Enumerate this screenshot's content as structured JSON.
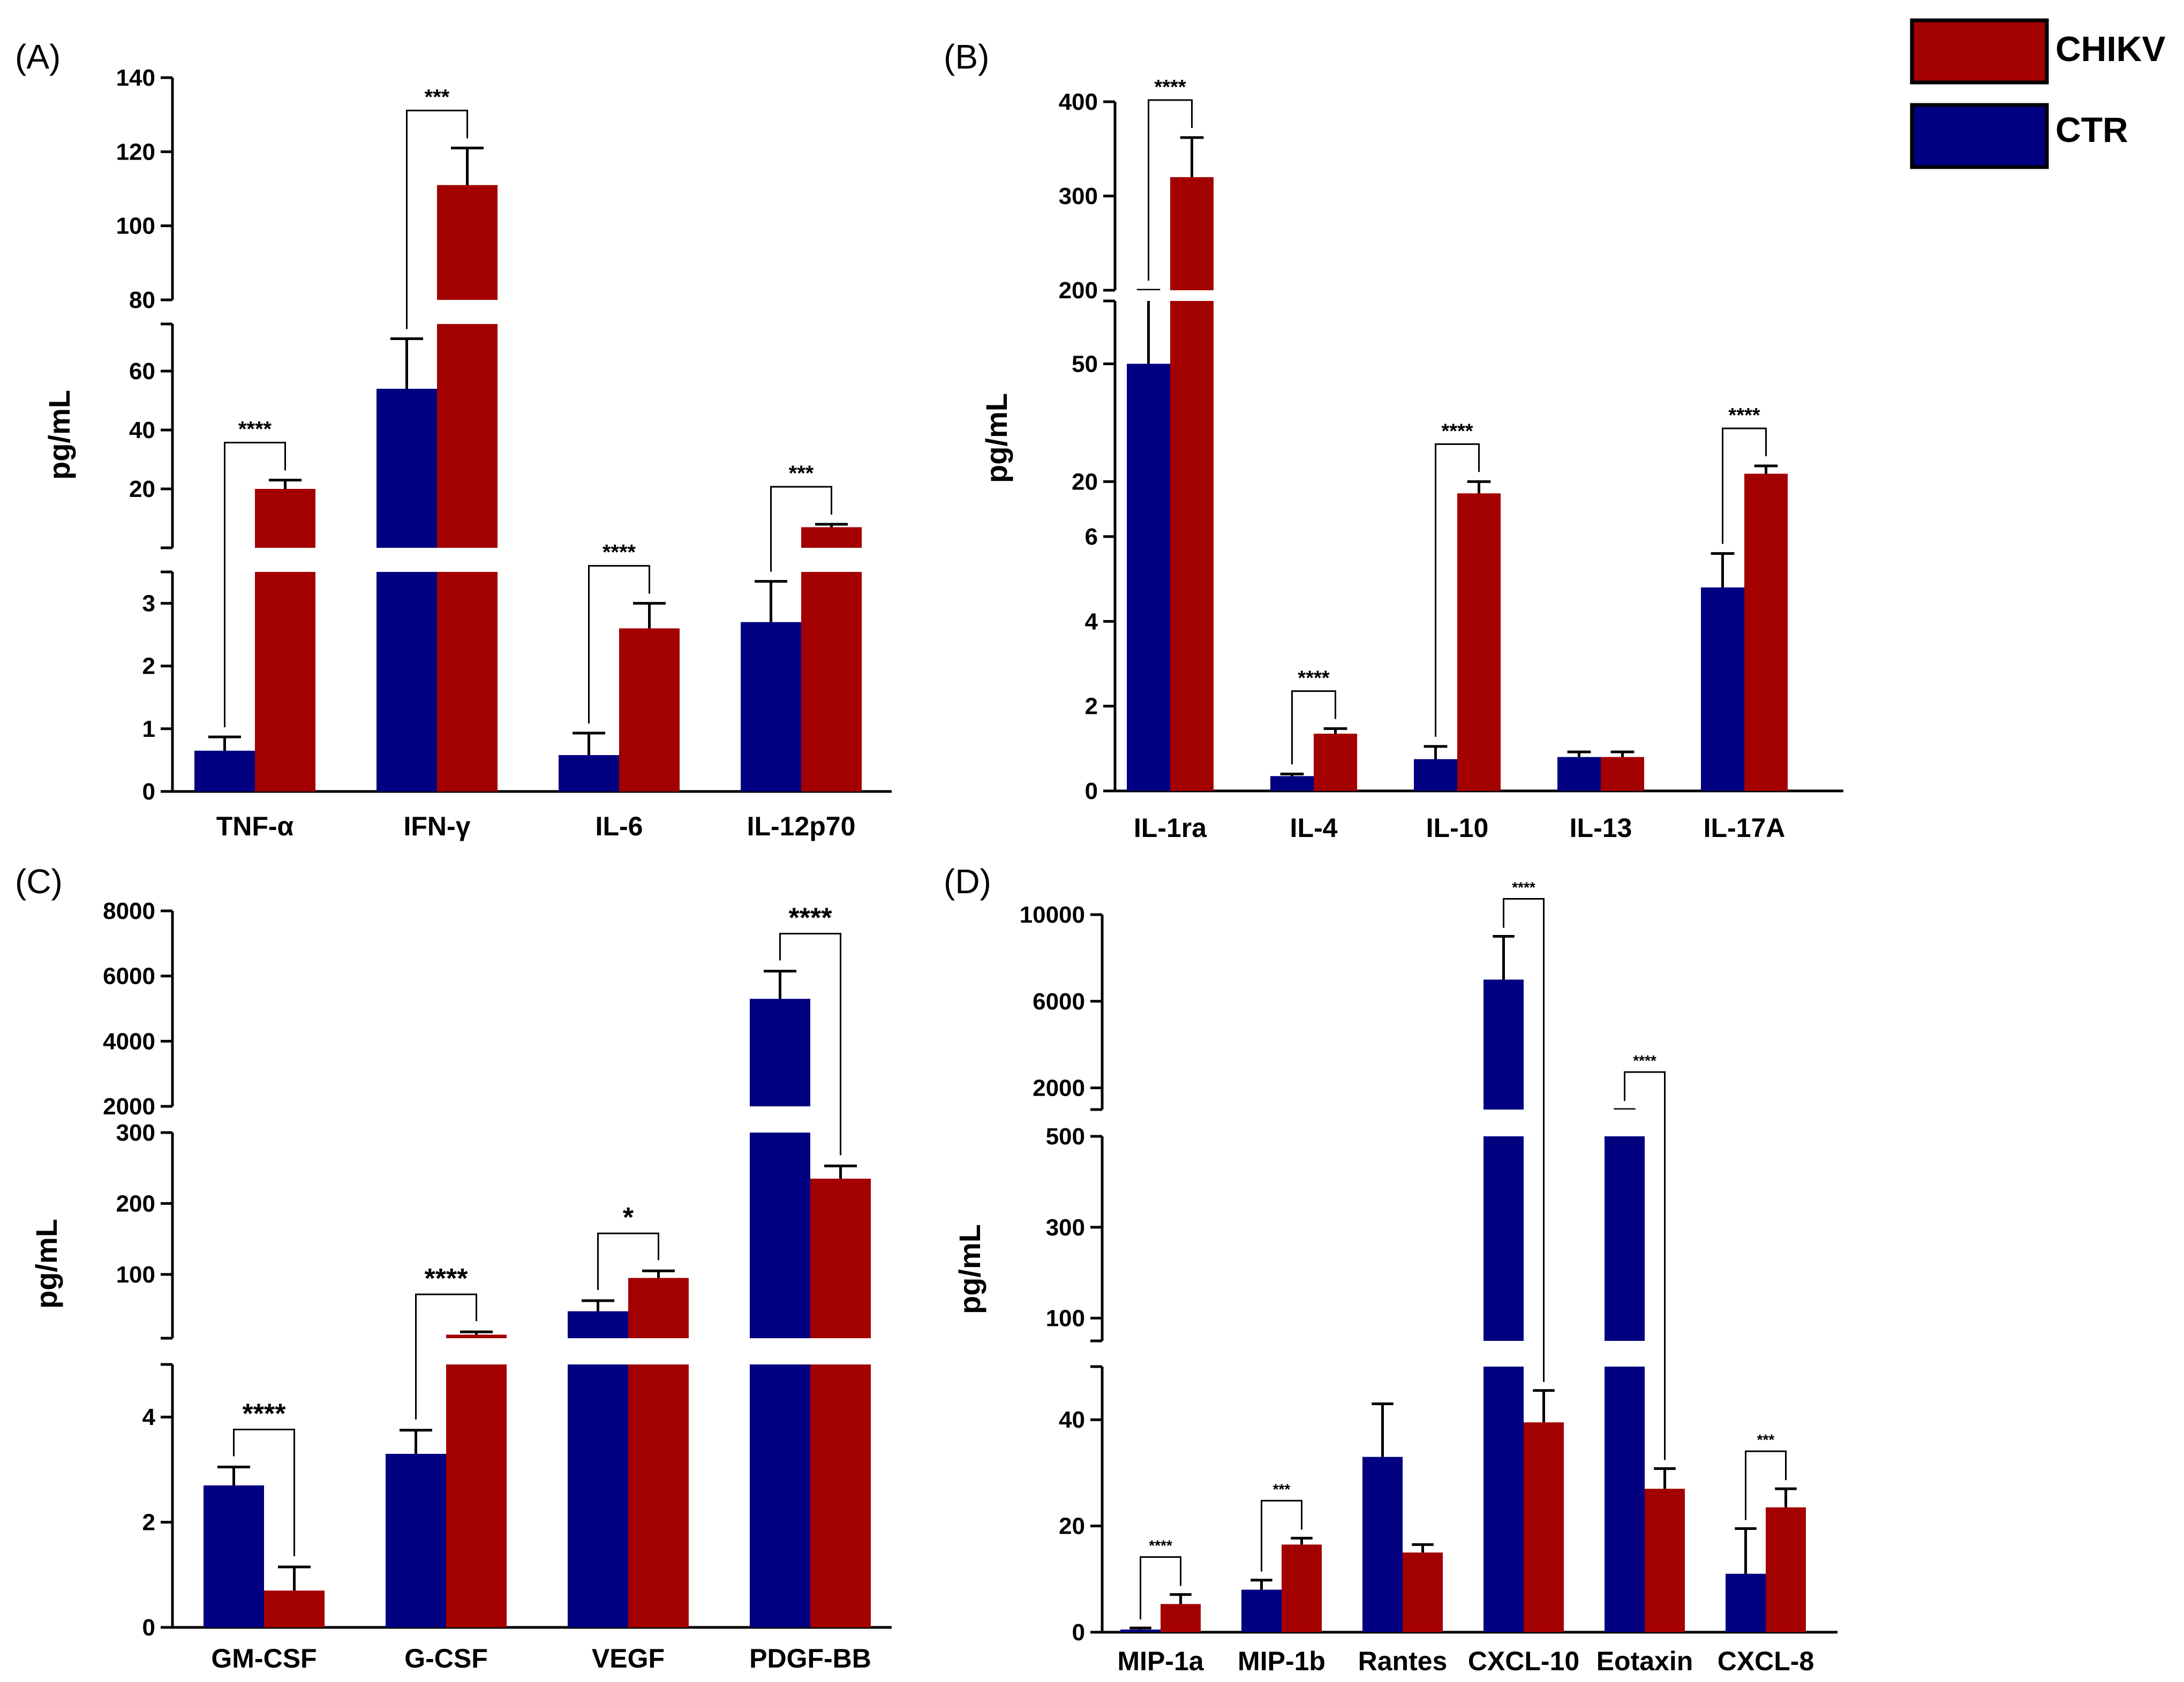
{
  "legend": [
    {
      "label": "CHIKV",
      "color": "#A30000"
    },
    {
      "label": "CTR",
      "color": "#000080"
    }
  ],
  "chart_data": [
    {
      "type": "bar",
      "panel": "(A)",
      "ylabel": "pg/mL",
      "broken_axis": true,
      "segments": [
        {
          "ylim": [
            0,
            3.5
          ],
          "ticks": [
            0,
            1,
            2,
            3
          ]
        },
        {
          "ylim": [
            0,
            76
          ],
          "ticks": [
            20,
            40,
            60
          ]
        },
        {
          "ylim": [
            80,
            140
          ],
          "ticks": [
            80,
            100,
            120,
            140
          ]
        }
      ],
      "categories": [
        "TNF-α",
        "IFN-γ",
        "IL-6",
        "IL-12p70"
      ],
      "series": [
        {
          "name": "CTR",
          "values": [
            0.65,
            54,
            0.58,
            2.7
          ],
          "errors": [
            0.22,
            17,
            0.35,
            0.65
          ]
        },
        {
          "name": "CHIKV",
          "values": [
            20,
            111,
            2.6,
            7
          ],
          "errors": [
            3,
            10,
            0.4,
            1
          ]
        }
      ],
      "significance": [
        {
          "category": "TNF-α",
          "label": "****"
        },
        {
          "category": "IFN-γ",
          "label": "***"
        },
        {
          "category": "IL-6",
          "label": "****"
        },
        {
          "category": "IL-12p70",
          "label": "***"
        }
      ]
    },
    {
      "type": "bar",
      "panel": "(B)",
      "ylabel": "pg/mL",
      "broken_axis": true,
      "segments": [
        {
          "ylim": [
            0,
            6
          ],
          "ticks": [
            0,
            2,
            4,
            6
          ]
        },
        {
          "ylim": [
            6,
            66
          ],
          "ticks": [
            20,
            50
          ]
        },
        {
          "ylim": [
            200,
            400
          ],
          "ticks": [
            200,
            300,
            400
          ]
        }
      ],
      "categories": [
        "IL-1ra",
        "IL-4",
        "IL-10",
        "IL-13",
        "IL-17A"
      ],
      "series": [
        {
          "name": "CTR",
          "values": [
            50,
            0.35,
            0.75,
            0.8,
            4.8
          ],
          "errors": [
            18,
            0.05,
            0.3,
            0.12,
            0.8
          ]
        },
        {
          "name": "CHIKV",
          "values": [
            320,
            1.35,
            17,
            0.8,
            22
          ],
          "errors": [
            42,
            0.12,
            3,
            0.12,
            2
          ]
        }
      ],
      "significance": [
        {
          "category": "IL-1ra",
          "label": "****"
        },
        {
          "category": "IL-4",
          "label": "****"
        },
        {
          "category": "IL-10",
          "label": "****"
        },
        {
          "category": "IL-17A",
          "label": "****"
        }
      ]
    },
    {
      "type": "bar",
      "panel": "(C)",
      "ylabel": "pg/mL",
      "broken_axis": true,
      "segments": [
        {
          "ylim": [
            0,
            5
          ],
          "ticks": [
            0,
            2,
            4
          ]
        },
        {
          "ylim": [
            10,
            300
          ],
          "ticks": [
            100,
            200,
            300
          ]
        },
        {
          "ylim": [
            2000,
            8000
          ],
          "ticks": [
            2000,
            4000,
            6000,
            8000
          ]
        }
      ],
      "categories": [
        "GM-CSF",
        "G-CSF",
        "VEGF",
        "PDGF-BB"
      ],
      "series": [
        {
          "name": "CTR",
          "values": [
            2.7,
            3.3,
            48,
            5300
          ],
          "errors": [
            0.35,
            0.45,
            15,
            850
          ]
        },
        {
          "name": "CHIKV",
          "values": [
            0.7,
            15,
            95,
            235
          ],
          "errors": [
            0.45,
            4,
            10,
            18
          ]
        }
      ],
      "significance": [
        {
          "category": "GM-CSF",
          "label": "****"
        },
        {
          "category": "G-CSF",
          "label": "****"
        },
        {
          "category": "VEGF",
          "label": "*"
        },
        {
          "category": "PDGF-BB",
          "label": "****"
        }
      ]
    },
    {
      "type": "bar",
      "panel": "(D)",
      "ylabel": "pg/mL",
      "broken_axis": true,
      "segments": [
        {
          "ylim": [
            0,
            50
          ],
          "ticks": [
            0,
            20,
            40
          ]
        },
        {
          "ylim": [
            50,
            500
          ],
          "ticks": [
            100,
            300,
            500
          ]
        },
        {
          "ylim": [
            1000,
            10000
          ],
          "ticks": [
            2000,
            6000,
            10000
          ]
        }
      ],
      "categories": [
        "MIP-1a",
        "MIP-1b",
        "Rantes",
        "CXCL-10",
        "Eotaxin",
        "CXCL-8"
      ],
      "series": [
        {
          "name": "CTR",
          "values": [
            0.5,
            8,
            33,
            7000,
            600,
            11
          ],
          "errors": [
            0.3,
            1.8,
            10,
            2000,
            40,
            8.5
          ]
        },
        {
          "name": "CHIKV",
          "values": [
            5.3,
            16.5,
            15,
            39.5,
            27,
            23.5
          ],
          "errors": [
            1.8,
            1.2,
            1.5,
            6,
            3.8,
            3.5
          ]
        }
      ],
      "significance": [
        {
          "category": "MIP-1a",
          "label": "****"
        },
        {
          "category": "MIP-1b",
          "label": "***"
        },
        {
          "category": "CXCL-10",
          "label": "****"
        },
        {
          "category": "Eotaxin",
          "label": "****"
        },
        {
          "category": "CXCL-8",
          "label": "***"
        }
      ]
    }
  ]
}
